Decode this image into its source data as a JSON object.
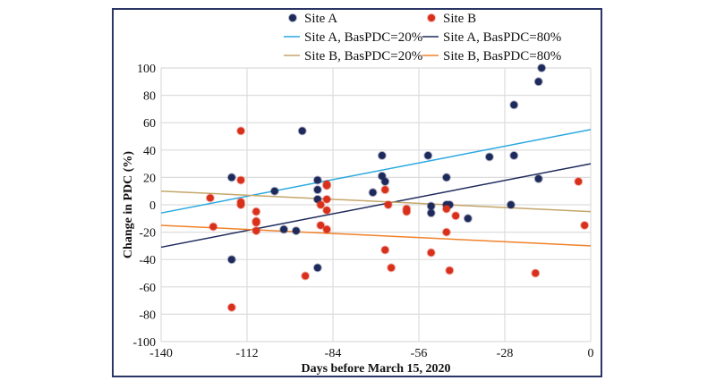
{
  "chart_data": {
    "type": "scatter",
    "title": "",
    "xlabel": "Days before March 15, 2020",
    "ylabel": "Change in PDC (%)",
    "xlim": [
      -140,
      0
    ],
    "ylim": [
      -100,
      100
    ],
    "xticks": [
      -140,
      -112,
      -84,
      -56,
      -28,
      0
    ],
    "yticks": [
      -100,
      -80,
      -60,
      -40,
      -20,
      0,
      20,
      40,
      60,
      80,
      100
    ],
    "grid": true,
    "legend_position": "top",
    "series": [
      {
        "name": "Site A",
        "kind": "points",
        "color": "#1f2a5c",
        "points": [
          [
            -117,
            20
          ],
          [
            -117,
            -40
          ],
          [
            -103,
            10
          ],
          [
            -100,
            -18
          ],
          [
            -96,
            -19
          ],
          [
            -94,
            54
          ],
          [
            -89,
            18
          ],
          [
            -89,
            11
          ],
          [
            -89,
            4
          ],
          [
            -89,
            -46
          ],
          [
            -71,
            9
          ],
          [
            -68,
            36
          ],
          [
            -68,
            21
          ],
          [
            -67,
            17
          ],
          [
            -53,
            36
          ],
          [
            -52,
            -1
          ],
          [
            -52,
            -6
          ],
          [
            -47,
            20
          ],
          [
            -47,
            0
          ],
          [
            -46,
            0
          ],
          [
            -40,
            -10
          ],
          [
            -33,
            35
          ],
          [
            -26,
            0
          ],
          [
            -25,
            73
          ],
          [
            -25,
            36
          ],
          [
            -17,
            90
          ],
          [
            -17,
            19
          ],
          [
            -16,
            100
          ]
        ]
      },
      {
        "name": "Site B",
        "kind": "points",
        "color": "#d9301c",
        "points": [
          [
            -124,
            5
          ],
          [
            -123,
            -16
          ],
          [
            -117,
            -75
          ],
          [
            -114,
            54
          ],
          [
            -114,
            18
          ],
          [
            -114,
            2
          ],
          [
            -114,
            0
          ],
          [
            -109,
            -5
          ],
          [
            -109,
            -12
          ],
          [
            -109,
            -13
          ],
          [
            -109,
            -19
          ],
          [
            -93,
            -52
          ],
          [
            -88,
            0
          ],
          [
            -88,
            -15
          ],
          [
            -86,
            14
          ],
          [
            -86,
            15
          ],
          [
            -86,
            4
          ],
          [
            -86,
            -4
          ],
          [
            -86,
            -18
          ],
          [
            -67,
            11
          ],
          [
            -67,
            -33
          ],
          [
            -66,
            0
          ],
          [
            -65,
            -46
          ],
          [
            -60,
            -3
          ],
          [
            -60,
            -5
          ],
          [
            -52,
            -35
          ],
          [
            -47,
            -3
          ],
          [
            -47,
            -20
          ],
          [
            -46,
            -48
          ],
          [
            -44,
            -8
          ],
          [
            -18,
            -50
          ],
          [
            -4,
            17
          ],
          [
            -2,
            -15
          ]
        ]
      },
      {
        "name": "Site A, BasPDC=20%",
        "kind": "line",
        "color": "#29a8e0",
        "points": [
          [
            -140,
            -6
          ],
          [
            0,
            55
          ]
        ]
      },
      {
        "name": "Site A, BasPDC=80%",
        "kind": "line",
        "color": "#1f2a5c",
        "points": [
          [
            -140,
            -31
          ],
          [
            0,
            30
          ]
        ]
      },
      {
        "name": "Site B, BasPDC=20%",
        "kind": "line",
        "color": "#c4a66a",
        "points": [
          [
            -140,
            10
          ],
          [
            0,
            -5
          ]
        ]
      },
      {
        "name": "Site B, BasPDC=80%",
        "kind": "line",
        "color": "#f0822a",
        "points": [
          [
            -140,
            -15
          ],
          [
            0,
            -30
          ]
        ]
      }
    ]
  }
}
